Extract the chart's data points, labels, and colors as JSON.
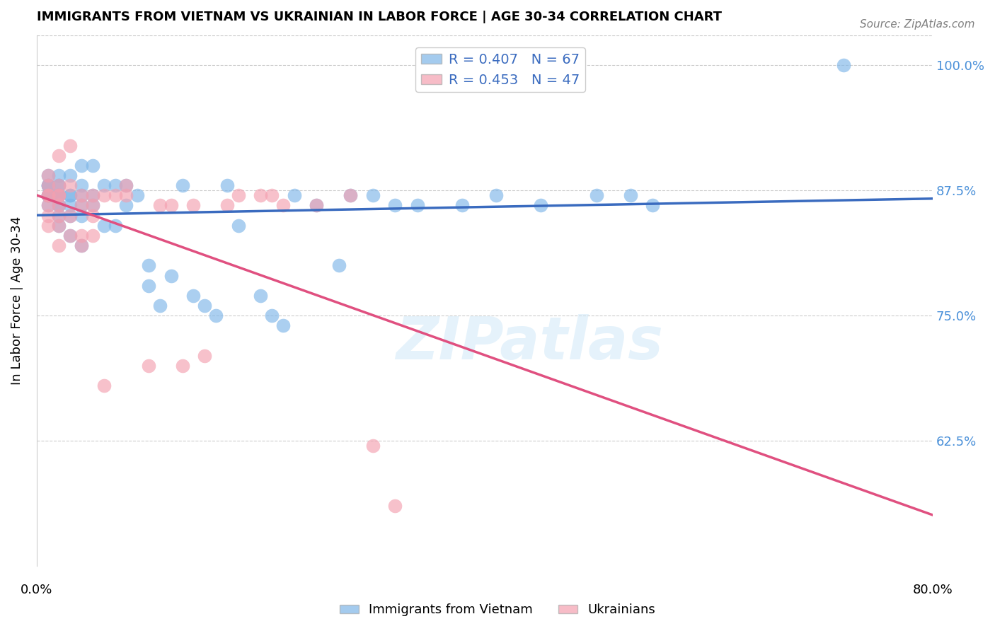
{
  "title": "IMMIGRANTS FROM VIETNAM VS UKRAINIAN IN LABOR FORCE | AGE 30-34 CORRELATION CHART",
  "source": "Source: ZipAtlas.com",
  "ylabel": "In Labor Force | Age 30-34",
  "ytick_labels": [
    "100.0%",
    "87.5%",
    "75.0%",
    "62.5%"
  ],
  "ytick_values": [
    1.0,
    0.875,
    0.75,
    0.625
  ],
  "xlim": [
    0.0,
    0.8
  ],
  "ylim": [
    0.5,
    1.03
  ],
  "vietnam_color": "#7EB6E8",
  "ukraine_color": "#F4A0B0",
  "vietnam_line_color": "#3A6BBF",
  "ukraine_line_color": "#E05080",
  "watermark": "ZIPatlas",
  "vietnam_x": [
    0.01,
    0.01,
    0.01,
    0.01,
    0.01,
    0.01,
    0.01,
    0.01,
    0.02,
    0.02,
    0.02,
    0.02,
    0.02,
    0.02,
    0.02,
    0.02,
    0.02,
    0.02,
    0.03,
    0.03,
    0.03,
    0.03,
    0.03,
    0.03,
    0.04,
    0.04,
    0.04,
    0.04,
    0.04,
    0.04,
    0.05,
    0.05,
    0.05,
    0.06,
    0.06,
    0.07,
    0.07,
    0.08,
    0.08,
    0.09,
    0.1,
    0.1,
    0.11,
    0.12,
    0.13,
    0.14,
    0.15,
    0.16,
    0.17,
    0.18,
    0.2,
    0.21,
    0.22,
    0.23,
    0.25,
    0.27,
    0.28,
    0.3,
    0.32,
    0.34,
    0.38,
    0.41,
    0.45,
    0.5,
    0.53,
    0.55,
    0.72
  ],
  "vietnam_y": [
    0.86,
    0.87,
    0.87,
    0.87,
    0.88,
    0.88,
    0.88,
    0.89,
    0.84,
    0.85,
    0.86,
    0.86,
    0.87,
    0.87,
    0.87,
    0.88,
    0.88,
    0.89,
    0.83,
    0.85,
    0.86,
    0.87,
    0.87,
    0.89,
    0.82,
    0.85,
    0.86,
    0.87,
    0.88,
    0.9,
    0.86,
    0.87,
    0.9,
    0.84,
    0.88,
    0.84,
    0.88,
    0.86,
    0.88,
    0.87,
    0.78,
    0.8,
    0.76,
    0.79,
    0.88,
    0.77,
    0.76,
    0.75,
    0.88,
    0.84,
    0.77,
    0.75,
    0.74,
    0.87,
    0.86,
    0.8,
    0.87,
    0.87,
    0.86,
    0.86,
    0.86,
    0.87,
    0.86,
    0.87,
    0.87,
    0.86,
    1.0
  ],
  "ukraine_x": [
    0.01,
    0.01,
    0.01,
    0.01,
    0.01,
    0.01,
    0.01,
    0.02,
    0.02,
    0.02,
    0.02,
    0.02,
    0.02,
    0.02,
    0.02,
    0.03,
    0.03,
    0.03,
    0.03,
    0.04,
    0.04,
    0.04,
    0.04,
    0.05,
    0.05,
    0.05,
    0.05,
    0.06,
    0.06,
    0.07,
    0.08,
    0.08,
    0.1,
    0.11,
    0.12,
    0.13,
    0.14,
    0.15,
    0.17,
    0.18,
    0.2,
    0.21,
    0.22,
    0.25,
    0.28,
    0.3,
    0.32
  ],
  "ukraine_y": [
    0.84,
    0.85,
    0.86,
    0.87,
    0.87,
    0.88,
    0.89,
    0.82,
    0.84,
    0.85,
    0.86,
    0.87,
    0.87,
    0.88,
    0.91,
    0.83,
    0.85,
    0.88,
    0.92,
    0.82,
    0.83,
    0.86,
    0.87,
    0.83,
    0.85,
    0.86,
    0.87,
    0.68,
    0.87,
    0.87,
    0.87,
    0.88,
    0.7,
    0.86,
    0.86,
    0.7,
    0.86,
    0.71,
    0.86,
    0.87,
    0.87,
    0.87,
    0.86,
    0.86,
    0.87,
    0.62,
    0.56
  ]
}
